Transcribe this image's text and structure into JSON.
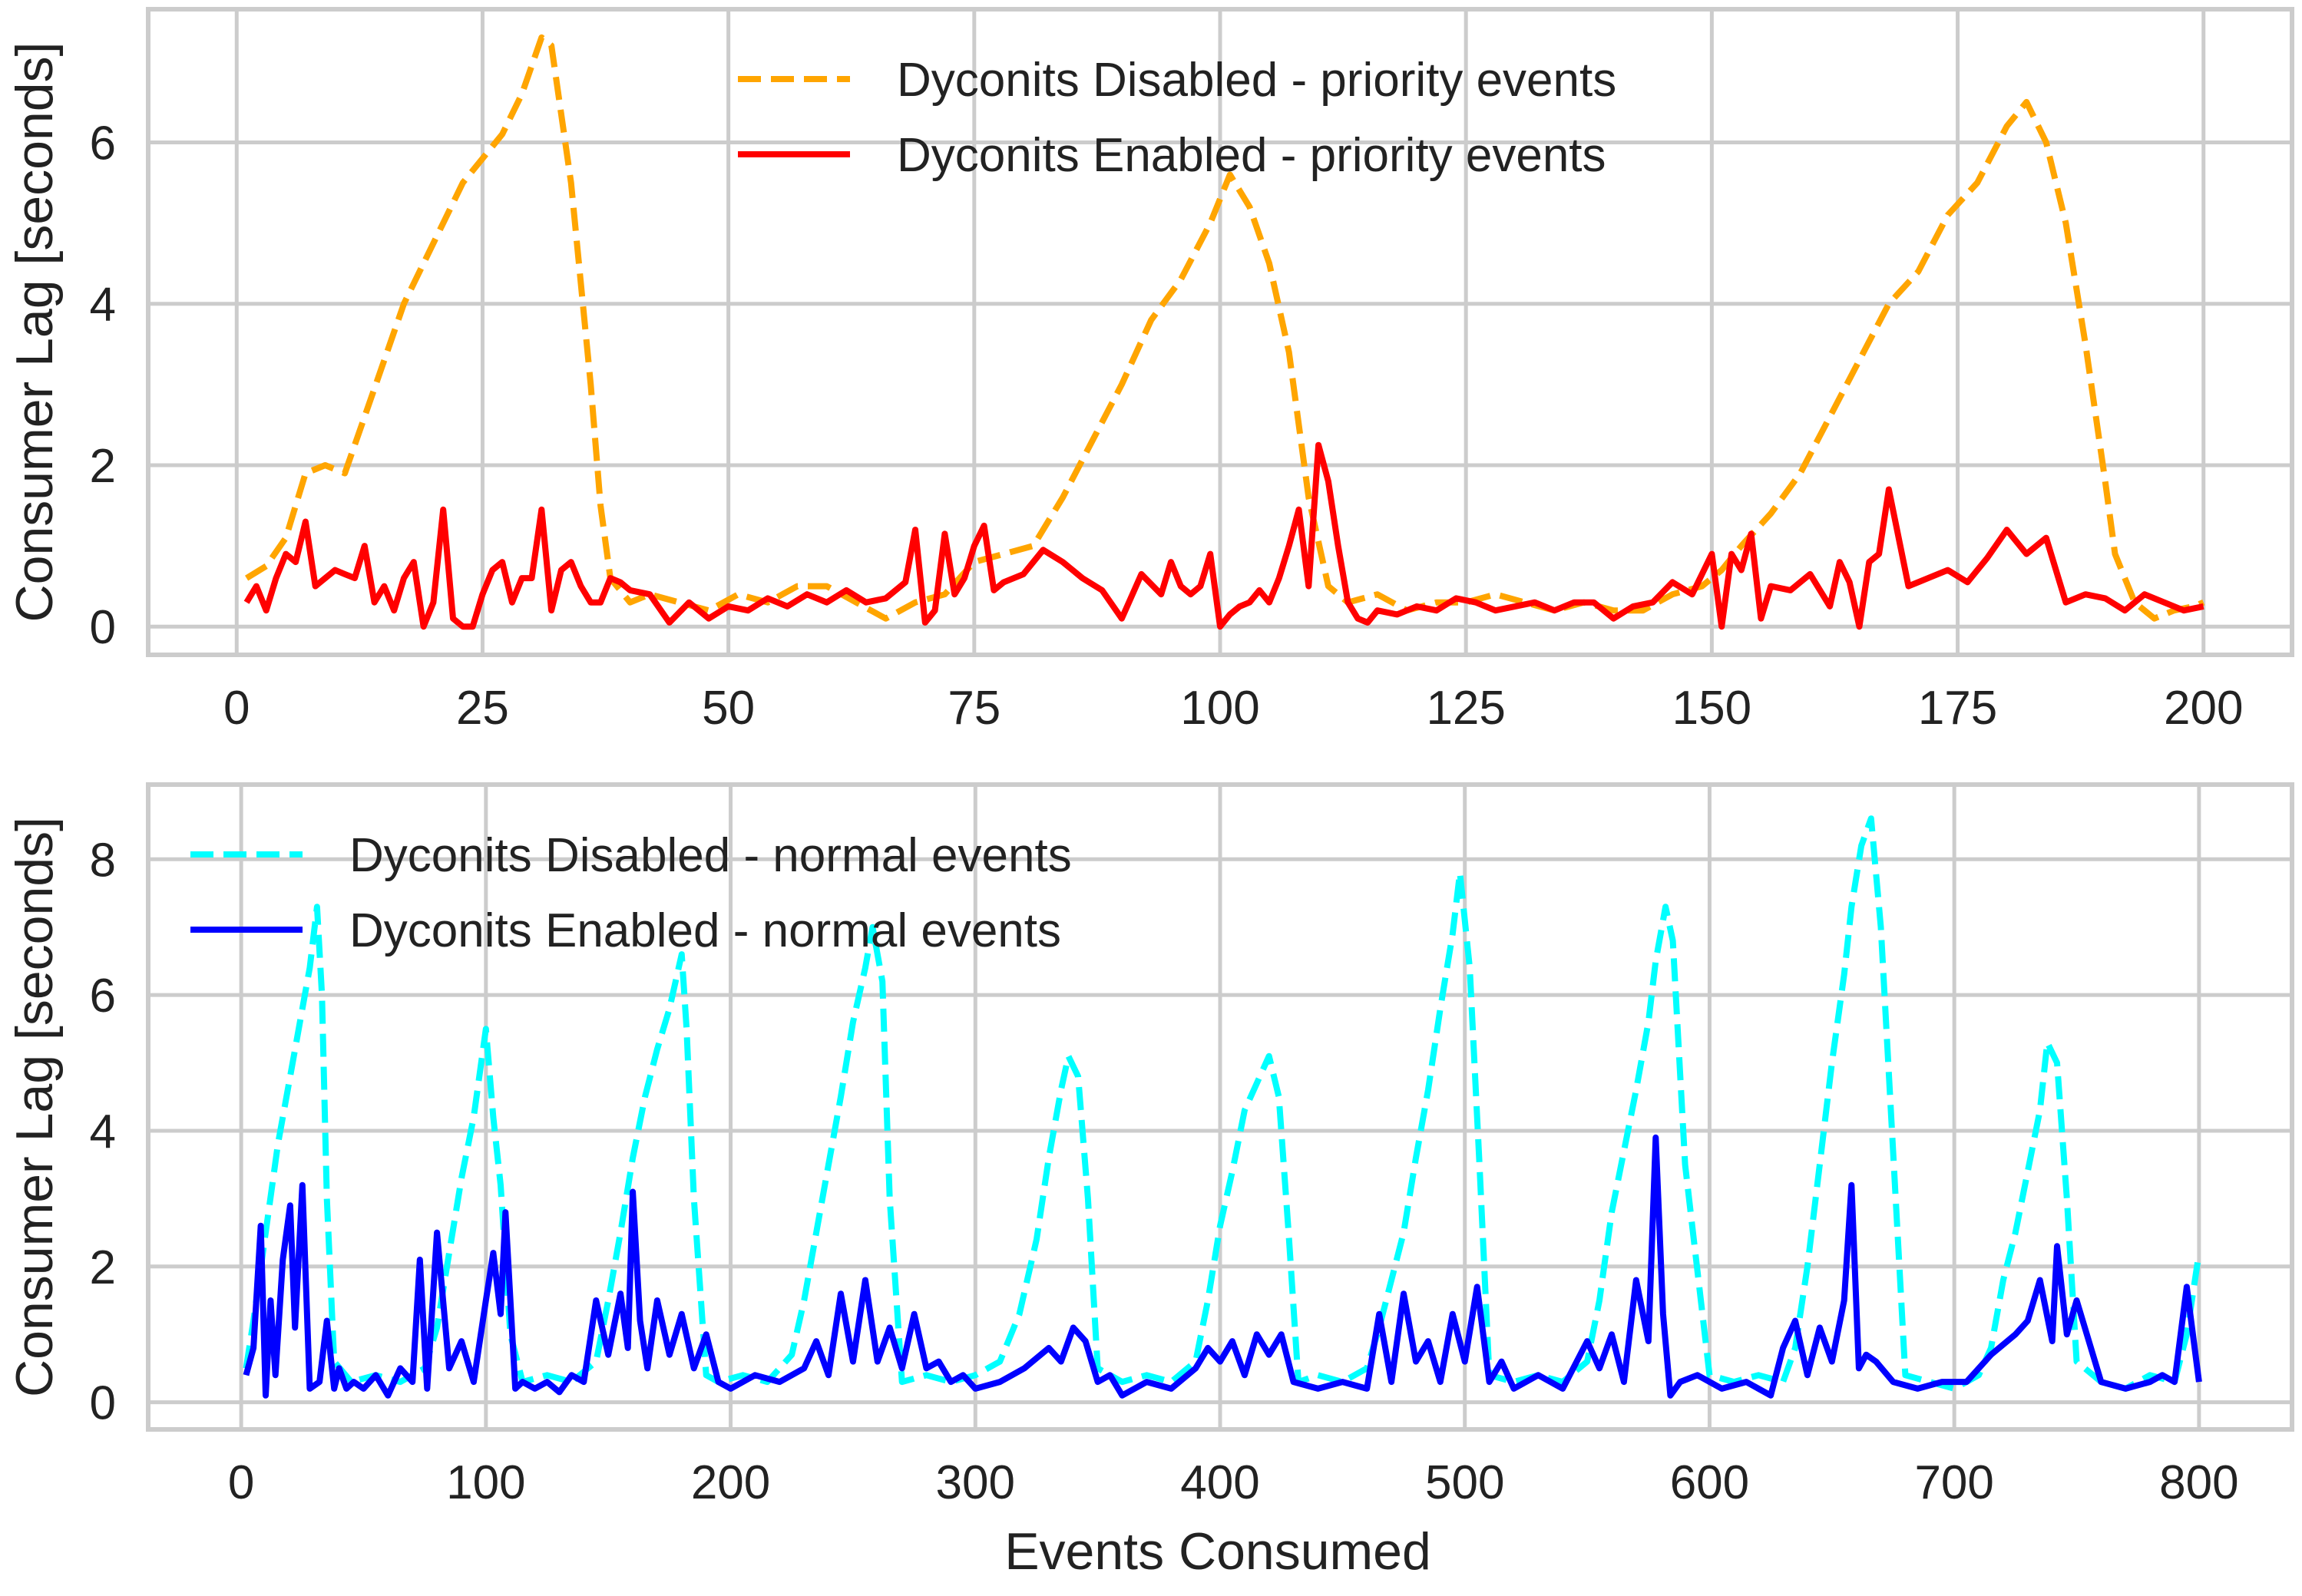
{
  "chart_data": [
    {
      "type": "line",
      "title": "",
      "xlabel": "",
      "ylabel": "Consumer Lag [seconds]",
      "xlim": [
        -9,
        209
      ],
      "ylim": [
        -0.35,
        7.65
      ],
      "xticks": [
        0,
        25,
        50,
        75,
        100,
        125,
        150,
        175,
        200
      ],
      "yticks": [
        0,
        2,
        4,
        6
      ],
      "grid": true,
      "legend_position": "top-center",
      "series": [
        {
          "name": "Dyconits Disabled - priority events",
          "color": "#FFA500",
          "dash": "dashed",
          "x": [
            1,
            3,
            5,
            7,
            9,
            11,
            13,
            15,
            17,
            19,
            21,
            23,
            25,
            27,
            29,
            31,
            32,
            34,
            36,
            37,
            38,
            40,
            42,
            45,
            48,
            51,
            54,
            57,
            60,
            63,
            66,
            69,
            72,
            75,
            78,
            81,
            84,
            87,
            90,
            93,
            96,
            99,
            101,
            103,
            105,
            107,
            109,
            111,
            113,
            116,
            119,
            122,
            125,
            128,
            131,
            134,
            137,
            140,
            143,
            146,
            149,
            151,
            153,
            156,
            159,
            162,
            165,
            168,
            171,
            174,
            177,
            180,
            182,
            184,
            186,
            188,
            190,
            191,
            193,
            195,
            197,
            199,
            200
          ],
          "y": [
            0.6,
            0.75,
            1.1,
            1.9,
            2.0,
            1.9,
            2.6,
            3.3,
            4.0,
            4.5,
            5.0,
            5.5,
            5.8,
            6.1,
            6.6,
            7.3,
            7.2,
            5.5,
            3.0,
            1.5,
            0.6,
            0.3,
            0.4,
            0.3,
            0.2,
            0.4,
            0.3,
            0.5,
            0.5,
            0.3,
            0.1,
            0.3,
            0.4,
            0.8,
            0.9,
            1.0,
            1.6,
            2.3,
            3.0,
            3.8,
            4.3,
            5.0,
            5.6,
            5.2,
            4.5,
            3.4,
            1.6,
            0.5,
            0.3,
            0.4,
            0.2,
            0.3,
            0.3,
            0.4,
            0.3,
            0.2,
            0.3,
            0.2,
            0.2,
            0.4,
            0.5,
            0.7,
            1.0,
            1.4,
            1.9,
            2.6,
            3.3,
            4.0,
            4.4,
            5.1,
            5.5,
            6.2,
            6.5,
            6.0,
            5.0,
            3.5,
            1.8,
            0.9,
            0.3,
            0.1,
            0.2,
            0.25,
            0.3
          ]
        },
        {
          "name": "Dyconits Enabled - priority events",
          "color": "#FF0000",
          "dash": "solid",
          "x": [
            1,
            2,
            3,
            4,
            5,
            6,
            7,
            8,
            9,
            10,
            11,
            12,
            13,
            14,
            15,
            16,
            17,
            18,
            19,
            20,
            21,
            22,
            23,
            24,
            25,
            26,
            27,
            28,
            29,
            30,
            31,
            32,
            33,
            34,
            35,
            36,
            37,
            38,
            39,
            40,
            42,
            44,
            46,
            48,
            50,
            52,
            54,
            56,
            58,
            60,
            62,
            64,
            66,
            68,
            69,
            70,
            71,
            72,
            73,
            74,
            75,
            76,
            77,
            78,
            80,
            82,
            84,
            86,
            88,
            90,
            92,
            94,
            95,
            96,
            97,
            98,
            99,
            100,
            101,
            102,
            103,
            104,
            105,
            106,
            107,
            108,
            109,
            110,
            111,
            112,
            113,
            114,
            115,
            116,
            118,
            120,
            122,
            124,
            126,
            128,
            130,
            132,
            134,
            136,
            138,
            140,
            142,
            144,
            146,
            148,
            150,
            151,
            152,
            153,
            154,
            155,
            156,
            158,
            160,
            162,
            163,
            164,
            165,
            166,
            167,
            168,
            170,
            172,
            174,
            176,
            178,
            180,
            182,
            184,
            186,
            188,
            190,
            192,
            194,
            196,
            198,
            200
          ],
          "y": [
            0.3,
            0.5,
            0.2,
            0.6,
            0.9,
            0.8,
            1.3,
            0.5,
            0.6,
            0.7,
            0.65,
            0.6,
            1.0,
            0.3,
            0.5,
            0.2,
            0.6,
            0.8,
            0.0,
            0.3,
            1.45,
            0.1,
            0.0,
            0.0,
            0.4,
            0.7,
            0.8,
            0.3,
            0.6,
            0.6,
            1.45,
            0.2,
            0.7,
            0.8,
            0.5,
            0.3,
            0.3,
            0.6,
            0.55,
            0.45,
            0.4,
            0.05,
            0.3,
            0.1,
            0.25,
            0.2,
            0.35,
            0.25,
            0.4,
            0.3,
            0.45,
            0.3,
            0.35,
            0.55,
            1.2,
            0.05,
            0.2,
            1.15,
            0.4,
            0.6,
            1.0,
            1.25,
            0.45,
            0.55,
            0.65,
            0.95,
            0.8,
            0.6,
            0.45,
            0.1,
            0.65,
            0.4,
            0.8,
            0.5,
            0.4,
            0.5,
            0.9,
            0.0,
            0.15,
            0.25,
            0.3,
            0.45,
            0.3,
            0.6,
            1.0,
            1.45,
            0.5,
            2.25,
            1.8,
            1.0,
            0.3,
            0.1,
            0.05,
            0.2,
            0.15,
            0.25,
            0.2,
            0.35,
            0.3,
            0.2,
            0.25,
            0.3,
            0.2,
            0.3,
            0.3,
            0.1,
            0.25,
            0.3,
            0.55,
            0.4,
            0.9,
            0.0,
            0.9,
            0.7,
            1.15,
            0.1,
            0.5,
            0.45,
            0.65,
            0.25,
            0.8,
            0.55,
            0.0,
            0.8,
            0.9,
            1.7,
            0.5,
            0.6,
            0.7,
            0.55,
            0.85,
            1.2,
            0.9,
            1.1,
            0.3,
            0.4,
            0.35,
            0.2,
            0.4,
            0.3,
            0.2,
            0.25
          ]
        }
      ]
    },
    {
      "type": "line",
      "title": "",
      "xlabel": "Events Consumed",
      "ylabel": "Consumer Lag [seconds]",
      "xlim": [
        -38,
        838
      ],
      "ylim": [
        -0.4,
        9.1
      ],
      "xticks": [
        0,
        100,
        200,
        300,
        400,
        500,
        600,
        700,
        800
      ],
      "yticks": [
        0,
        2,
        4,
        6,
        8
      ],
      "grid": true,
      "legend_position": "top-left",
      "series": [
        {
          "name": "Dyconits Disabled - normal events",
          "color": "#00FFFF",
          "dash": "dashed",
          "x": [
            2,
            5,
            10,
            15,
            20,
            25,
            28,
            31,
            33,
            35,
            38,
            45,
            55,
            65,
            75,
            80,
            85,
            90,
            95,
            100,
            103,
            106,
            110,
            115,
            125,
            135,
            145,
            150,
            155,
            160,
            165,
            170,
            175,
            180,
            182,
            185,
            190,
            195,
            205,
            215,
            225,
            230,
            235,
            240,
            245,
            250,
            255,
            258,
            262,
            265,
            270,
            280,
            290,
            300,
            310,
            318,
            325,
            330,
            335,
            338,
            342,
            346,
            350,
            360,
            370,
            380,
            390,
            395,
            400,
            405,
            410,
            415,
            420,
            424,
            428,
            432,
            440,
            450,
            460,
            465,
            470,
            475,
            480,
            485,
            490,
            495,
            498,
            502,
            506,
            510,
            520,
            530,
            540,
            550,
            555,
            560,
            565,
            570,
            575,
            578,
            582,
            585,
            590,
            600,
            610,
            620,
            630,
            635,
            640,
            645,
            650,
            655,
            658,
            662,
            666,
            670,
            680,
            690,
            700,
            710,
            715,
            720,
            725,
            730,
            735,
            738,
            742,
            746,
            750,
            760,
            770,
            780,
            790,
            795,
            800
          ],
          "y": [
            0.5,
            1.2,
            2.5,
            3.8,
            4.8,
            5.8,
            6.4,
            7.3,
            6.0,
            3.0,
            0.6,
            0.3,
            0.4,
            0.3,
            0.5,
            1.1,
            2.2,
            3.3,
            4.2,
            5.5,
            4.2,
            3.2,
            1.0,
            0.3,
            0.4,
            0.3,
            0.6,
            1.5,
            2.5,
            3.6,
            4.5,
            5.2,
            5.8,
            6.6,
            5.5,
            3.0,
            0.4,
            0.3,
            0.4,
            0.3,
            0.7,
            1.5,
            2.5,
            3.5,
            4.5,
            5.6,
            6.4,
            7.0,
            6.2,
            3.0,
            0.3,
            0.4,
            0.3,
            0.4,
            0.6,
            1.3,
            2.4,
            3.6,
            4.6,
            5.1,
            4.8,
            3.0,
            0.5,
            0.3,
            0.4,
            0.3,
            0.6,
            1.5,
            2.6,
            3.4,
            4.3,
            4.7,
            5.1,
            4.5,
            2.5,
            0.3,
            0.4,
            0.3,
            0.5,
            1.1,
            1.8,
            2.5,
            3.6,
            4.6,
            5.8,
            6.9,
            7.8,
            6.4,
            3.5,
            0.4,
            0.3,
            0.4,
            0.3,
            0.6,
            1.5,
            2.8,
            3.7,
            4.6,
            5.6,
            6.5,
            7.3,
            6.8,
            3.5,
            0.4,
            0.3,
            0.4,
            0.3,
            0.8,
            2.0,
            3.5,
            5.0,
            6.3,
            7.3,
            8.2,
            8.6,
            7.0,
            0.4,
            0.3,
            0.2,
            0.4,
            0.8,
            1.8,
            2.5,
            3.4,
            4.3,
            5.3,
            5.0,
            3.0,
            0.6,
            0.3,
            0.2,
            0.4,
            0.3,
            1.0,
            2.2
          ]
        },
        {
          "name": "Dyconits Enabled - normal events",
          "color": "#0000FF",
          "dash": "solid",
          "x": [
            2,
            5,
            8,
            10,
            12,
            14,
            17,
            20,
            22,
            25,
            28,
            32,
            35,
            38,
            40,
            43,
            46,
            50,
            55,
            60,
            65,
            70,
            73,
            76,
            80,
            85,
            90,
            95,
            100,
            103,
            106,
            108,
            112,
            115,
            120,
            125,
            130,
            135,
            140,
            145,
            150,
            155,
            158,
            160,
            163,
            166,
            170,
            175,
            180,
            185,
            190,
            195,
            200,
            210,
            220,
            230,
            235,
            240,
            245,
            250,
            255,
            260,
            265,
            270,
            275,
            280,
            285,
            290,
            295,
            300,
            310,
            320,
            330,
            335,
            340,
            345,
            350,
            355,
            360,
            370,
            380,
            390,
            395,
            400,
            405,
            410,
            415,
            420,
            425,
            430,
            440,
            450,
            460,
            465,
            470,
            475,
            480,
            485,
            490,
            495,
            500,
            505,
            510,
            515,
            520,
            530,
            540,
            550,
            555,
            560,
            565,
            570,
            575,
            578,
            581,
            584,
            588,
            595,
            605,
            615,
            625,
            630,
            635,
            640,
            645,
            650,
            655,
            658,
            661,
            664,
            668,
            675,
            685,
            695,
            705,
            715,
            725,
            730,
            735,
            740,
            742,
            746,
            750,
            760,
            770,
            780,
            785,
            790,
            795,
            800
          ],
          "y": [
            0.4,
            0.8,
            2.6,
            0.1,
            1.5,
            0.4,
            2.1,
            2.9,
            1.1,
            3.2,
            0.2,
            0.3,
            1.2,
            0.2,
            0.5,
            0.2,
            0.3,
            0.2,
            0.4,
            0.1,
            0.5,
            0.3,
            2.1,
            0.2,
            2.5,
            0.5,
            0.9,
            0.3,
            1.5,
            2.2,
            1.3,
            2.8,
            0.2,
            0.3,
            0.2,
            0.3,
            0.15,
            0.4,
            0.3,
            1.5,
            0.7,
            1.6,
            0.8,
            3.1,
            1.2,
            0.5,
            1.5,
            0.7,
            1.3,
            0.5,
            1.0,
            0.3,
            0.2,
            0.4,
            0.3,
            0.5,
            0.9,
            0.4,
            1.6,
            0.6,
            1.8,
            0.6,
            1.1,
            0.5,
            1.3,
            0.5,
            0.6,
            0.3,
            0.4,
            0.2,
            0.3,
            0.5,
            0.8,
            0.6,
            1.1,
            0.9,
            0.3,
            0.4,
            0.1,
            0.3,
            0.2,
            0.5,
            0.8,
            0.6,
            0.9,
            0.4,
            1.0,
            0.7,
            1.0,
            0.3,
            0.2,
            0.3,
            0.2,
            1.3,
            0.3,
            1.6,
            0.6,
            0.9,
            0.3,
            1.3,
            0.6,
            1.7,
            0.3,
            0.6,
            0.2,
            0.4,
            0.2,
            0.9,
            0.5,
            1.0,
            0.3,
            1.8,
            0.9,
            3.9,
            1.3,
            0.1,
            0.3,
            0.4,
            0.2,
            0.3,
            0.1,
            0.8,
            1.2,
            0.4,
            1.1,
            0.6,
            1.5,
            3.2,
            0.5,
            0.7,
            0.6,
            0.3,
            0.2,
            0.3,
            0.3,
            0.7,
            1.0,
            1.2,
            1.8,
            0.9,
            2.3,
            1.0,
            1.5,
            0.3,
            0.2,
            0.3,
            0.4,
            0.3,
            1.7,
            0.3
          ]
        }
      ]
    }
  ]
}
